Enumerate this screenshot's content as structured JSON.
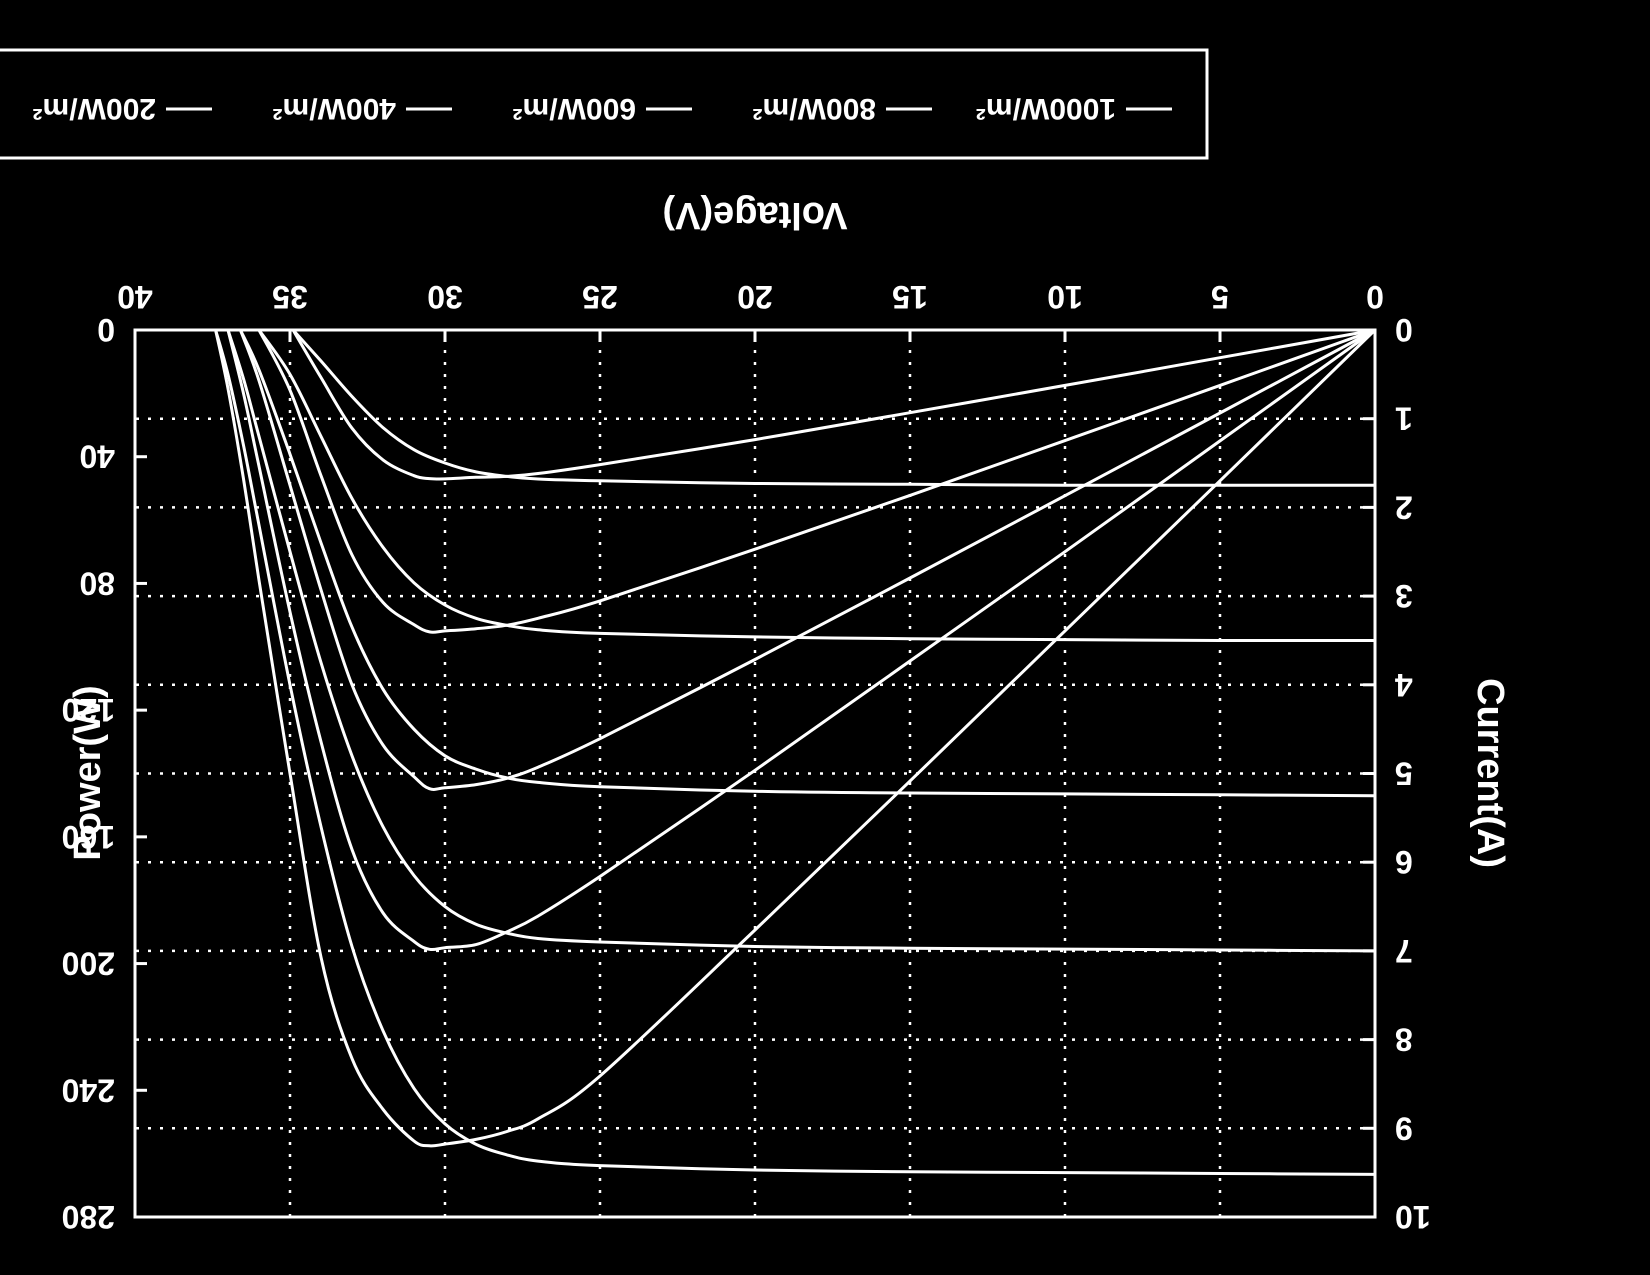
{
  "colors": {
    "background": "#000000",
    "foreground": "#ffffff"
  },
  "chart_data": {
    "type": "line",
    "title": "",
    "xlabel": "Voltage(V)",
    "ylabel": "Current(A)",
    "y2label": "Power(W)",
    "xlim": [
      0,
      40
    ],
    "ylim": [
      0,
      10
    ],
    "y2lim": [
      0,
      280
    ],
    "x_ticks": [
      "0",
      "5",
      "10",
      "15",
      "20",
      "25",
      "30",
      "35",
      "40"
    ],
    "y_ticks": [
      "0",
      "1",
      "2",
      "3",
      "4",
      "5",
      "6",
      "7",
      "8",
      "9",
      "10"
    ],
    "y2_ticks": [
      "0",
      "40",
      "80",
      "120",
      "160",
      "200",
      "240",
      "280"
    ],
    "grid": true,
    "legend_position": "top",
    "orientation": "rotated-180",
    "legend": [
      "1000W/m²",
      "800W/m²",
      "600W/m²",
      "400W/m²",
      "200W/m²"
    ],
    "series": [
      {
        "irradiance": "1000W/m²",
        "current": {
          "x": [
            0,
            5,
            10,
            15,
            20,
            25,
            27,
            28,
            29,
            30,
            31,
            32,
            33,
            34,
            35,
            36,
            36.5,
            37,
            37.4
          ],
          "y": [
            9.52,
            9.51,
            9.5,
            9.49,
            9.47,
            9.42,
            9.37,
            9.3,
            9.18,
            8.95,
            8.55,
            7.9,
            6.95,
            5.6,
            4.0,
            2.2,
            1.3,
            0.5,
            0.0
          ]
        },
        "power": {
          "x": [
            0,
            5,
            10,
            15,
            20,
            25,
            27,
            28,
            29,
            30,
            30.5,
            31,
            32,
            33,
            34,
            35,
            36,
            36.5,
            37,
            37.4
          ],
          "y": [
            0,
            47.6,
            95,
            142.4,
            189.4,
            235.5,
            249,
            253,
            255.5,
            257,
            257.5,
            256,
            246,
            230,
            198,
            140,
            79,
            47,
            18.5,
            0
          ]
        }
      },
      {
        "irradiance": "800W/m²",
        "current": {
          "x": [
            0,
            5,
            10,
            15,
            20,
            25,
            27,
            28,
            29,
            30,
            31,
            32,
            33,
            34,
            35,
            36,
            36.5,
            37.0
          ],
          "y": [
            7.0,
            6.99,
            6.98,
            6.97,
            6.95,
            6.9,
            6.86,
            6.8,
            6.7,
            6.5,
            6.15,
            5.6,
            4.8,
            3.75,
            2.5,
            1.2,
            0.55,
            0.0
          ]
        },
        "power": {
          "x": [
            0,
            5,
            10,
            15,
            20,
            25,
            27,
            28,
            29,
            30,
            30.5,
            31,
            32,
            33,
            34,
            35,
            36,
            36.5,
            37.0
          ],
          "y": [
            0,
            35,
            70,
            104.5,
            139,
            172.5,
            185,
            190,
            194,
            195,
            195.5,
            193,
            184,
            164,
            130,
            89,
            43,
            20,
            0
          ]
        }
      },
      {
        "irradiance": "600W/m²",
        "current": {
          "x": [
            0,
            5,
            10,
            15,
            20,
            25,
            27,
            28,
            29,
            30,
            31,
            32,
            33,
            34,
            35,
            36,
            36.6
          ],
          "y": [
            5.25,
            5.24,
            5.23,
            5.22,
            5.2,
            5.15,
            5.1,
            5.05,
            4.95,
            4.8,
            4.5,
            4.05,
            3.35,
            2.4,
            1.4,
            0.45,
            0.0
          ]
        },
        "power": {
          "x": [
            0,
            5,
            10,
            15,
            20,
            25,
            27,
            28,
            29,
            30,
            30.5,
            31,
            32,
            33,
            34,
            35,
            36,
            36.6
          ],
          "y": [
            0,
            26.2,
            52.3,
            78.3,
            104,
            129,
            138,
            141.5,
            143.5,
            144.5,
            144.8,
            141,
            131,
            112,
            82,
            49,
            16,
            0
          ]
        }
      },
      {
        "irradiance": "400W/m²",
        "current": {
          "x": [
            0,
            5,
            10,
            15,
            20,
            25,
            27,
            28,
            29,
            30,
            31,
            32,
            33,
            34,
            35,
            36.0
          ],
          "y": [
            3.5,
            3.5,
            3.49,
            3.48,
            3.46,
            3.42,
            3.38,
            3.33,
            3.25,
            3.1,
            2.85,
            2.45,
            1.9,
            1.2,
            0.5,
            0.0
          ]
        },
        "power": {
          "x": [
            0,
            5,
            10,
            15,
            20,
            25,
            27,
            28,
            29,
            30,
            30.5,
            31,
            32,
            33,
            34,
            35,
            36.0
          ],
          "y": [
            0,
            17.5,
            34.9,
            52.2,
            69.2,
            85.5,
            91,
            93.2,
            94.3,
            95,
            95.3,
            93,
            86,
            71,
            46,
            19,
            0
          ]
        }
      },
      {
        "irradiance": "200W/m²",
        "current": {
          "x": [
            0,
            5,
            10,
            15,
            20,
            25,
            27,
            28,
            29,
            30,
            31,
            32,
            33,
            34,
            34.9
          ],
          "y": [
            1.75,
            1.75,
            1.75,
            1.74,
            1.73,
            1.7,
            1.68,
            1.65,
            1.6,
            1.5,
            1.35,
            1.1,
            0.75,
            0.35,
            0.0
          ]
        },
        "power": {
          "x": [
            0,
            5,
            10,
            15,
            20,
            25,
            27,
            28,
            29,
            30,
            30.5,
            31,
            32,
            33,
            34,
            34.9
          ],
          "y": [
            0,
            8.75,
            17.5,
            26.1,
            34.6,
            42.5,
            45.3,
            46.2,
            46.5,
            47,
            46.9,
            46,
            41,
            31,
            15,
            0
          ]
        }
      }
    ]
  }
}
